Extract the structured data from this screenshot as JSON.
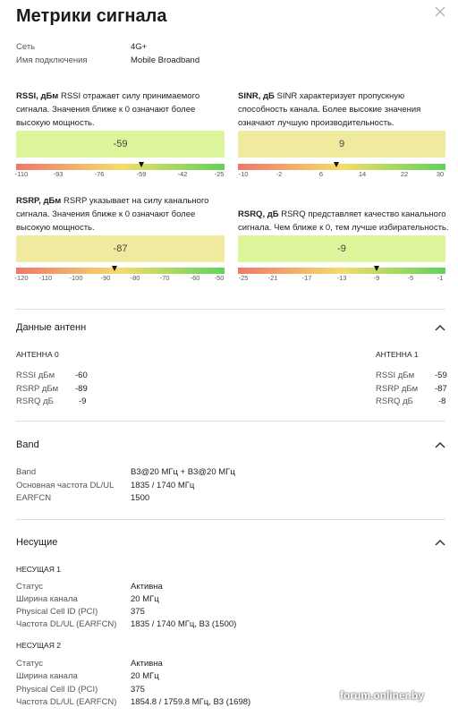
{
  "title": "Метрики сигнала",
  "general": [
    {
      "key": "Сеть",
      "value": "4G+"
    },
    {
      "key": "Имя подключения",
      "value": "Mobile Broadband"
    }
  ],
  "metrics": {
    "rssi": {
      "name": "RSSI, дБм",
      "desc": "RSSI отражает силу принимаемого сигнала. Значения ближе к 0 означают более высокую мощность.",
      "value": "-59",
      "value_num": -59,
      "range": [
        -110,
        -25
      ],
      "ticks": [
        "-110",
        "-93",
        "-76",
        "-59",
        "-42",
        "-25"
      ],
      "box_color": "#dcf59a"
    },
    "sinr": {
      "name": "SINR, дБ",
      "desc": "SINR характеризует пропускную способность канала. Более высокие значения означают лучшую производительность.",
      "value": "9",
      "value_num": 9,
      "range": [
        -10,
        30
      ],
      "ticks": [
        "-10",
        "-2",
        "6",
        "14",
        "22",
        "30"
      ],
      "box_color": "#f0ea9e"
    },
    "rsrp": {
      "name": "RSRP, дБм",
      "desc": "RSRP указывает на силу канального сигнала. Значения ближе к 0 означают более высокую мощность.",
      "value": "-87",
      "value_num": -87,
      "range": [
        -120,
        -50
      ],
      "ticks": [
        "-120",
        "-110",
        "-100",
        "-90",
        "-80",
        "-70",
        "-60",
        "-50"
      ],
      "box_color": "#f0ea9e"
    },
    "rsrq": {
      "name": "RSRQ, дБ",
      "desc": "RSRQ представляет качество канального сигнала. Чем ближе к 0, тем лучше избирательность.",
      "value": "-9",
      "value_num": -9,
      "range": [
        -25,
        -1
      ],
      "ticks": [
        "-25",
        "-21",
        "-17",
        "-13",
        "-9",
        "-5",
        "-1"
      ],
      "box_color": "#dcf59a"
    }
  },
  "antenna": {
    "section_title": "Данные антенн",
    "ant0": {
      "header": "АНТЕННА 0",
      "rows": [
        {
          "key": "RSSI дБм",
          "value": "-60"
        },
        {
          "key": "RSRP дБм",
          "value": "-89"
        },
        {
          "key": "RSRQ дБ",
          "value": "-9"
        }
      ]
    },
    "ant1": {
      "header": "АНТЕННА 1",
      "rows": [
        {
          "key": "RSSI дБм",
          "value": "-59"
        },
        {
          "key": "RSRP дБм",
          "value": "-87"
        },
        {
          "key": "RSRQ дБ",
          "value": "-8"
        }
      ]
    }
  },
  "band": {
    "section_title": "Band",
    "rows": [
      {
        "key": "Band",
        "value": "B3@20 МГц + B3@20 МГц"
      },
      {
        "key": "Основная частота DL/UL",
        "value": "1835 / 1740 МГц"
      },
      {
        "key": "EARFCN",
        "value": "1500"
      }
    ]
  },
  "carriers": {
    "section_title": "Несущие",
    "c1": {
      "header": "НЕСУЩАЯ 1",
      "rows": [
        {
          "key": "Статус",
          "value": "Активна"
        },
        {
          "key": "Ширина канала",
          "value": "20 МГц"
        },
        {
          "key": "Physical Cell ID (PCI)",
          "value": "375"
        },
        {
          "key": "Частота DL/UL (EARFCN)",
          "value": "1835 / 1740 МГц, B3 (1500)"
        }
      ]
    },
    "c2": {
      "header": "НЕСУЩАЯ 2",
      "rows": [
        {
          "key": "Статус",
          "value": "Активна"
        },
        {
          "key": "Ширина канала",
          "value": "20 МГц"
        },
        {
          "key": "Physical Cell ID (PCI)",
          "value": "375"
        },
        {
          "key": "Частота DL/UL (EARFCN)",
          "value": "1854.8 / 1759.8 МГц, B3 (1698)"
        }
      ]
    }
  },
  "watermark": "forum.onliner.by",
  "colors": {
    "gauge_low": "#f0776b",
    "gauge_mid": "#f5dc6a",
    "gauge_high": "#5fd35a"
  }
}
